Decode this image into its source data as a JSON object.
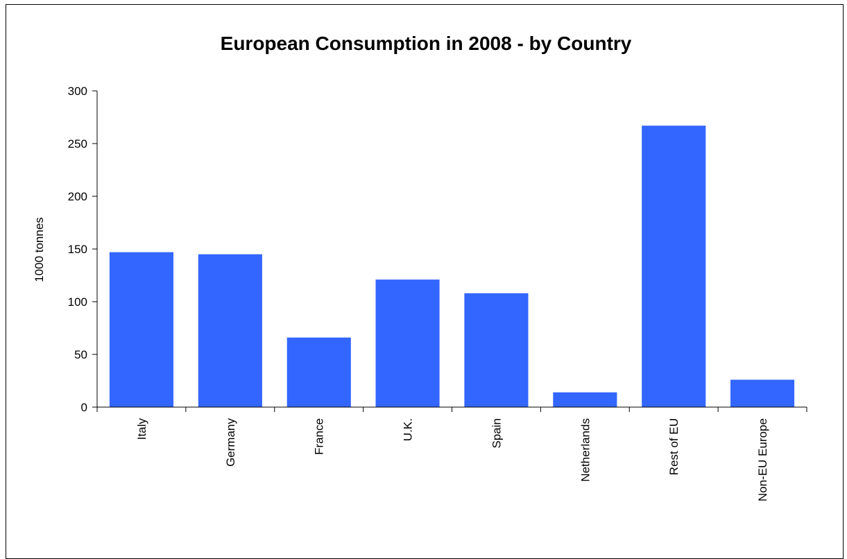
{
  "chart_data": {
    "type": "bar",
    "title": "European Consumption in 2008 - by Country",
    "xlabel": "",
    "ylabel": "1000 tonnes",
    "categories": [
      "Italy",
      "Germany",
      "France",
      "U.K.",
      "Spain",
      "Netherlands",
      "Rest of EU",
      "Non-EU Europe"
    ],
    "values": [
      147,
      145,
      66,
      121,
      108,
      14,
      267,
      26
    ],
    "ylim": [
      0,
      300
    ],
    "yticks": [
      0,
      50,
      100,
      150,
      200,
      250,
      300
    ],
    "grid": false,
    "legend": "none",
    "bar_color": "#3366FF"
  }
}
